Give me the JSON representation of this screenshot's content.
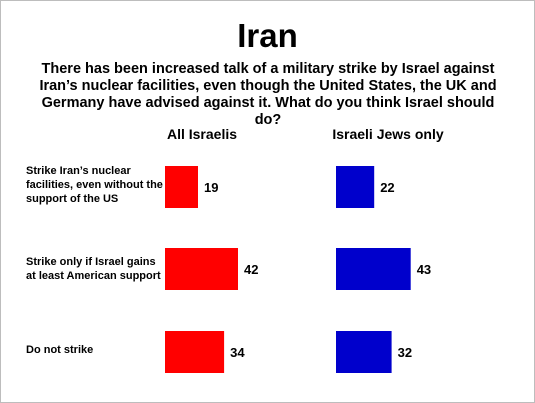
{
  "title": "Iran",
  "question": "There has been increased talk of a military strike by Israel against Iran’s nuclear facilities, even though the United States, the UK and Germany have advised against it.  What do you think Israel should do?",
  "chart_data": {
    "type": "bar",
    "categories": [
      "Strike Iran’s nuclear facilities, even without the support of the US",
      "Strike only if Israel gains at least American support",
      "Do not strike"
    ],
    "series": [
      {
        "name": "All Israelis",
        "values": [
          19,
          42,
          34
        ],
        "color": "#ff0000"
      },
      {
        "name": "Israeli Jews only",
        "values": [
          22,
          43,
          32
        ],
        "color": "#0000cc"
      }
    ],
    "orientation": "horizontal",
    "xlim": [
      0,
      42
    ]
  }
}
